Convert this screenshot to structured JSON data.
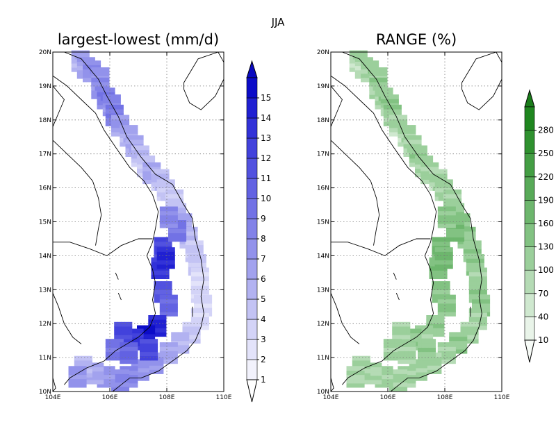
{
  "figure": {
    "season_label": "JJA"
  },
  "panels": [
    {
      "title": "largest-lowest (mm/d)",
      "colormap": "blue",
      "colorbar": {
        "labels": [
          "1",
          "2",
          "3",
          "4",
          "5",
          "6",
          "7",
          "8",
          "9",
          "10",
          "11",
          "12",
          "13",
          "14",
          "15"
        ],
        "colors": [
          "#f2f2fc",
          "#e3e3fa",
          "#d3d3f7",
          "#c3c3f4",
          "#b2b2f1",
          "#a2a2ee",
          "#9292eb",
          "#8282e8",
          "#7272e5",
          "#6262e2",
          "#5252df",
          "#4242dc",
          "#3232d8",
          "#2020d2",
          "#0c0cc8"
        ],
        "arrow_low": "#ffffff",
        "arrow_high": "#0a0ac0"
      }
    },
    {
      "title": "RANGE (%)",
      "colormap": "green",
      "colorbar": {
        "labels": [
          "10",
          "40",
          "70",
          "100",
          "130",
          "160",
          "190",
          "220",
          "250",
          "280"
        ],
        "colors": [
          "#e9f4e9",
          "#cfe8cf",
          "#b5dbb5",
          "#9bcf9b",
          "#82c282",
          "#6db66d",
          "#58aa58",
          "#449e44",
          "#2f912f",
          "#1f861f"
        ],
        "arrow_low": "#f7fbf7",
        "arrow_high": "#1a7c1a"
      }
    }
  ],
  "axes": {
    "lon_ticks": [
      "104E",
      "106E",
      "108E",
      "110E"
    ],
    "lat_ticks": [
      "10N",
      "11N",
      "12N",
      "13N",
      "14N",
      "15N",
      "16N",
      "17N",
      "18N",
      "19N",
      "20N"
    ],
    "lon_range": [
      104,
      110
    ],
    "lat_range": [
      10,
      20
    ],
    "gridlines": "dotted"
  },
  "chart_data": [
    {
      "type": "heatmap",
      "title": "largest-lowest (mm/d)",
      "xlabel": "",
      "ylabel": "",
      "xlim": [
        104,
        110
      ],
      "ylim": [
        10,
        20
      ],
      "grid_resolution_deg": 0.25,
      "cells": [
        [
          104.9,
          19.8,
          6
        ],
        [
          105.1,
          19.6,
          7
        ],
        [
          105.3,
          19.5,
          8
        ],
        [
          105.6,
          19.3,
          7
        ],
        [
          105.6,
          19.0,
          8
        ],
        [
          105.8,
          18.7,
          9
        ],
        [
          106.0,
          18.5,
          8
        ],
        [
          106.1,
          18.2,
          9
        ],
        [
          106.3,
          17.9,
          7
        ],
        [
          106.6,
          17.6,
          6
        ],
        [
          106.8,
          17.3,
          6
        ],
        [
          107.0,
          17.0,
          5
        ],
        [
          107.2,
          16.7,
          4
        ],
        [
          107.4,
          16.5,
          6
        ],
        [
          107.7,
          16.3,
          5
        ],
        [
          107.9,
          16.0,
          4
        ],
        [
          108.2,
          15.7,
          4
        ],
        [
          108.3,
          15.3,
          5
        ],
        [
          108.5,
          15.0,
          6
        ],
        [
          108.7,
          14.6,
          5
        ],
        [
          108.9,
          14.2,
          4
        ],
        [
          109.0,
          13.8,
          4
        ],
        [
          109.1,
          13.4,
          3
        ],
        [
          109.1,
          13.0,
          3
        ],
        [
          109.2,
          12.6,
          3
        ],
        [
          109.1,
          12.2,
          3
        ],
        [
          108.8,
          11.8,
          4
        ],
        [
          108.4,
          11.5,
          5
        ],
        [
          108.0,
          11.2,
          6
        ],
        [
          107.5,
          10.9,
          7
        ],
        [
          107.0,
          10.7,
          7
        ],
        [
          106.6,
          10.5,
          8
        ],
        [
          106.3,
          10.4,
          8
        ],
        [
          105.8,
          10.5,
          7
        ],
        [
          105.4,
          10.6,
          6
        ],
        [
          105.0,
          10.8,
          5
        ],
        [
          104.8,
          10.5,
          7
        ],
        [
          107.8,
          14.3,
          12
        ],
        [
          107.7,
          13.7,
          13
        ],
        [
          107.8,
          13.0,
          11
        ],
        [
          108.0,
          12.6,
          10
        ],
        [
          107.6,
          12.0,
          14
        ],
        [
          107.2,
          11.7,
          15
        ],
        [
          106.8,
          11.6,
          13
        ],
        [
          106.4,
          11.8,
          12
        ],
        [
          106.1,
          11.3,
          9
        ],
        [
          106.6,
          11.2,
          10
        ],
        [
          107.3,
          11.3,
          12
        ],
        [
          108.3,
          14.8,
          9
        ],
        [
          108.0,
          15.2,
          8
        ],
        [
          107.9,
          14.0,
          14
        ]
      ]
    },
    {
      "type": "heatmap",
      "title": "RANGE (%)",
      "xlabel": "",
      "ylabel": "",
      "xlim": [
        104,
        110
      ],
      "ylim": [
        10,
        20
      ],
      "grid_resolution_deg": 0.25,
      "cells": [
        [
          104.9,
          19.8,
          100
        ],
        [
          105.1,
          19.6,
          110
        ],
        [
          105.3,
          19.5,
          120
        ],
        [
          105.6,
          19.3,
          110
        ],
        [
          105.6,
          19.0,
          120
        ],
        [
          105.8,
          18.7,
          125
        ],
        [
          106.0,
          18.5,
          115
        ],
        [
          106.1,
          18.2,
          120
        ],
        [
          106.3,
          17.9,
          110
        ],
        [
          106.6,
          17.6,
          105
        ],
        [
          106.8,
          17.3,
          110
        ],
        [
          107.0,
          17.0,
          120
        ],
        [
          107.2,
          16.7,
          100
        ],
        [
          107.4,
          16.5,
          110
        ],
        [
          107.7,
          16.3,
          105
        ],
        [
          107.9,
          16.0,
          100
        ],
        [
          108.2,
          15.7,
          110
        ],
        [
          108.3,
          15.3,
          120
        ],
        [
          108.5,
          15.0,
          130
        ],
        [
          108.7,
          14.6,
          125
        ],
        [
          108.9,
          14.2,
          120
        ],
        [
          109.0,
          13.8,
          115
        ],
        [
          109.1,
          13.4,
          110
        ],
        [
          109.1,
          13.0,
          120
        ],
        [
          109.2,
          12.6,
          115
        ],
        [
          109.1,
          12.2,
          100
        ],
        [
          108.8,
          11.8,
          110
        ],
        [
          108.4,
          11.5,
          115
        ],
        [
          108.0,
          11.2,
          110
        ],
        [
          107.5,
          10.9,
          105
        ],
        [
          107.0,
          10.7,
          110
        ],
        [
          106.6,
          10.5,
          100
        ],
        [
          106.3,
          10.4,
          105
        ],
        [
          105.8,
          10.5,
          100
        ],
        [
          105.4,
          10.6,
          95
        ],
        [
          105.0,
          10.8,
          100
        ],
        [
          104.8,
          10.5,
          90
        ],
        [
          107.8,
          14.3,
          160
        ],
        [
          107.7,
          13.7,
          150
        ],
        [
          107.8,
          13.0,
          140
        ],
        [
          108.0,
          12.6,
          135
        ],
        [
          107.6,
          12.0,
          120
        ],
        [
          107.2,
          11.7,
          110
        ],
        [
          106.8,
          11.6,
          115
        ],
        [
          106.4,
          11.8,
          105
        ],
        [
          106.1,
          11.3,
          100
        ],
        [
          106.6,
          11.2,
          110
        ],
        [
          107.3,
          11.3,
          115
        ],
        [
          108.3,
          14.8,
          145
        ],
        [
          108.0,
          15.2,
          140
        ],
        [
          107.9,
          14.0,
          165
        ]
      ]
    }
  ]
}
